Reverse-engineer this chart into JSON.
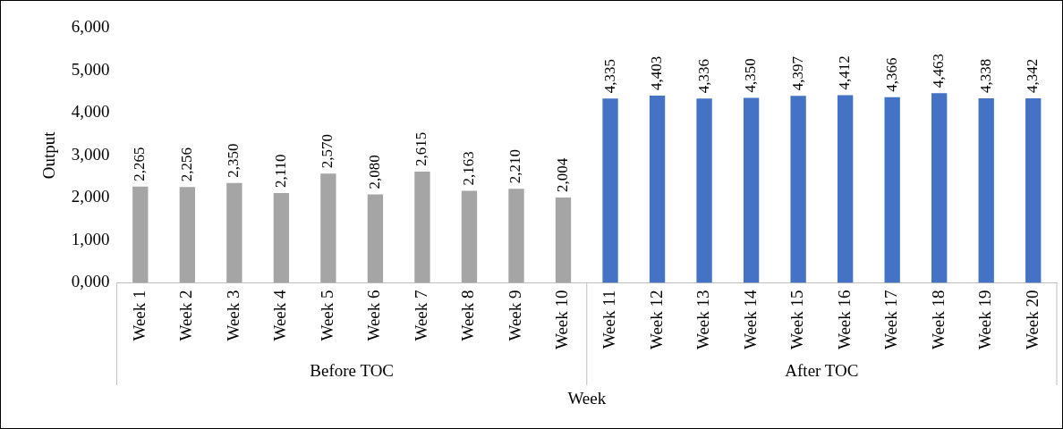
{
  "chart_data": {
    "type": "bar",
    "xlabel": "Week",
    "ylabel": "Output",
    "categories": [
      "Week 1",
      "Week 2",
      "Week 3",
      "Week 4",
      "Week 5",
      "Week 6",
      "Week 7",
      "Week 8",
      "Week 9",
      "Week 10",
      "Week 11",
      "Week 12",
      "Week 13",
      "Week 14",
      "Week 15",
      "Week 16",
      "Week 17",
      "Week 18",
      "Week 19",
      "Week 20"
    ],
    "values": [
      2265,
      2256,
      2350,
      2110,
      2570,
      2080,
      2615,
      2163,
      2210,
      2004,
      4335,
      4403,
      4336,
      4350,
      4397,
      4412,
      4366,
      4463,
      4338,
      4342
    ],
    "colors": [
      "#a5a5a5",
      "#a5a5a5",
      "#a5a5a5",
      "#a5a5a5",
      "#a5a5a5",
      "#a5a5a5",
      "#a5a5a5",
      "#a5a5a5",
      "#a5a5a5",
      "#a5a5a5",
      "#4472c4",
      "#4472c4",
      "#4472c4",
      "#4472c4",
      "#4472c4",
      "#4472c4",
      "#4472c4",
      "#4472c4",
      "#4472c4",
      "#4472c4"
    ],
    "ylim": [
      0,
      6000
    ],
    "yticks": [
      {
        "value": 0,
        "label": "0,000"
      },
      {
        "value": 1000,
        "label": "1,000"
      },
      {
        "value": 2000,
        "label": "2,000"
      },
      {
        "value": 3000,
        "label": "3,000"
      },
      {
        "value": 4000,
        "label": "4,000"
      },
      {
        "value": 5000,
        "label": "5,000"
      },
      {
        "value": 6000,
        "label": "6,000"
      }
    ],
    "value_labels": [
      "2,265",
      "2,256",
      "2,350",
      "2,110",
      "2,570",
      "2,080",
      "2,615",
      "2,163",
      "2,210",
      "2,004",
      "4,335",
      "4,403",
      "4,336",
      "4,350",
      "4,397",
      "4,412",
      "4,366",
      "4,463",
      "4,338",
      "4,342"
    ],
    "annotations": [
      "Before TOC",
      "After TOC"
    ]
  }
}
